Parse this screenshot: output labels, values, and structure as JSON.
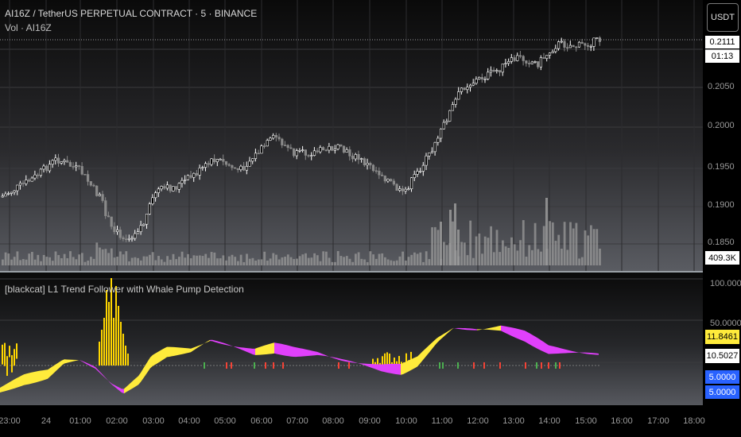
{
  "header": {
    "title": "AI16Z / TetherUS PERPETUAL CONTRACT · 5 · BINANCE",
    "volume_legend": "Vol · AI16Z",
    "indicator_legend": "[blackcat] L1 Trend Follower with Whale Pump Detection",
    "currency_button": "USDT"
  },
  "price_axis": {
    "labels": [
      "0.2050",
      "0.2000",
      "0.1950",
      "0.1900",
      "0.1850"
    ]
  },
  "price_tags": {
    "price_top": "0.2111",
    "countdown": "01:13",
    "volume": "409.3K"
  },
  "indicator_axis": {
    "top": "100.0000",
    "mid": "50.0000"
  },
  "indicator_tags": {
    "value_yellow": "11.8461",
    "value_white": "10.5027",
    "value_blue_1": "5.0000",
    "value_blue_2": "5.0000"
  },
  "time_axis": {
    "labels": [
      "23:00",
      "24",
      "01:00",
      "02:00",
      "03:00",
      "04:00",
      "05:00",
      "06:00",
      "07:00",
      "08:00",
      "09:00",
      "10:00",
      "11:00",
      "12:00",
      "13:00",
      "14:00",
      "15:00",
      "16:00",
      "17:00",
      "18:00"
    ]
  },
  "colors": {
    "up": "#ffffff",
    "down": "#8a8a8a",
    "volume": "#9a9a9a",
    "trend_yellow": "#ffeb3b",
    "trend_magenta": "#e040fb",
    "whale_bars": "#ffd600",
    "signal_green": "#4caf50",
    "signal_red": "#f44336",
    "tag_blue": "#2962ff"
  }
}
